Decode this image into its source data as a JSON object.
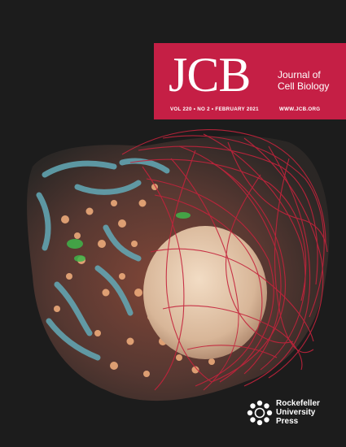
{
  "masthead": {
    "logo": "JCB",
    "name_lines": [
      "Journal of",
      "Cell Biology"
    ],
    "issue": "VOL 220 • NO 2 • FEBRUARY 2021",
    "website": "WWW.JCB.ORG"
  },
  "publisher": {
    "lines": [
      "Rockefeller",
      "University",
      "Press"
    ],
    "icon": "rockefeller-rosette-icon"
  },
  "colors": {
    "background": "#1c1c1c",
    "masthead": "#c51f45",
    "network": "#c4233c",
    "nucleus": "#e6c8ac",
    "mitochondria": "#63aab8",
    "vesicles": "#ecaa7a",
    "highlight": "#3fb54a"
  },
  "image": {
    "subject": "3D rendering of a cell with red filament network, nucleus, blue mitochondria and orange vesicles"
  }
}
